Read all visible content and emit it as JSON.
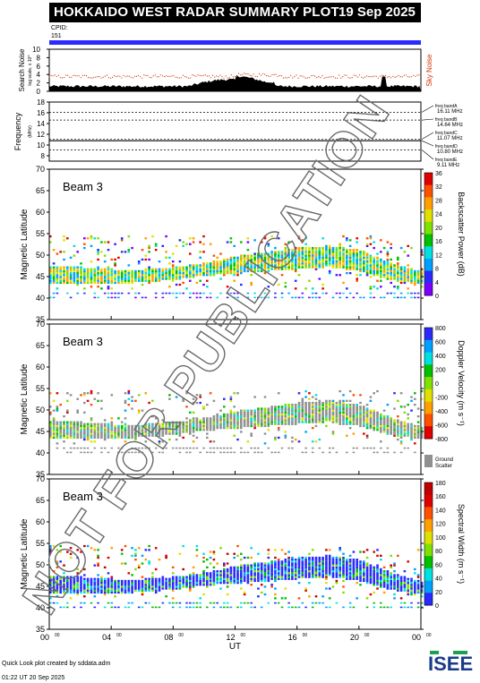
{
  "title": "HOKKAIDO WEST RADAR SUMMARY PLOT",
  "date": "19 Sep 2025",
  "cpid_label": "CPID:",
  "cpid_value": "151",
  "search_noise": {
    "ylabel": "Search Noise",
    "ylabel_sub": "log scale, x 10^",
    "right_label": "Sky Noise",
    "ticks": [
      "0",
      "2",
      "4",
      "6",
      "8",
      "10"
    ]
  },
  "frequency": {
    "ylabel": "Frequency",
    "unit": "(MHz)",
    "ticks": [
      "8",
      "10",
      "12",
      "14",
      "16",
      "18"
    ],
    "bands": [
      {
        "name": "freq bandA",
        "value": "16.11 MHz"
      },
      {
        "name": "freq bandB",
        "value": "14.64 MHz"
      },
      {
        "name": "freq bandC",
        "value": "11.07 MHz"
      },
      {
        "name": "freq bandD",
        "value": "10.80 MHz"
      },
      {
        "name": "freq bandE",
        "value": "9.11 MHz"
      }
    ]
  },
  "panels": [
    {
      "beam": "Beam  3",
      "ylabel": "Magnetic Latitude",
      "cbar_label": "Backscatter Power (dB)",
      "cbar_ticks": [
        "0",
        "4",
        "8",
        "12",
        "16",
        "20",
        "24",
        "28",
        "32",
        "36"
      ],
      "colors": [
        "#7a00ff",
        "#2a2aff",
        "#00a0ff",
        "#00e0e0",
        "#00c000",
        "#80e000",
        "#e0e000",
        "#ffa000",
        "#ff5000",
        "#e00000"
      ]
    },
    {
      "beam": "Beam  3",
      "ylabel": "Magnetic Latitude",
      "cbar_label": "Doppler Velocity (m s⁻¹)",
      "cbar_ticks": [
        "-800",
        "-600",
        "-400",
        "-200",
        "0",
        "200",
        "400",
        "600",
        "800"
      ],
      "ground_label": "Ground Scatter",
      "colors": [
        "#e00000",
        "#ff5000",
        "#ffa000",
        "#e0e000",
        "#80e000",
        "#00c000",
        "#00e0e0",
        "#00a0ff",
        "#2a2aff"
      ]
    },
    {
      "beam": "Beam  3",
      "ylabel": "Magnetic Latitude",
      "cbar_label": "Spectral Width (m s⁻¹)",
      "cbar_ticks": [
        "0",
        "20",
        "40",
        "60",
        "80",
        "100",
        "120",
        "140",
        "160",
        "180"
      ],
      "colors": [
        "#2a2aff",
        "#00a0ff",
        "#00e0e0",
        "#00c000",
        "#80e000",
        "#e0e000",
        "#ffa000",
        "#ff5000",
        "#e00000",
        "#c00000"
      ]
    }
  ],
  "lat_ticks": [
    "35",
    "40",
    "45",
    "50",
    "55",
    "60",
    "65",
    "70"
  ],
  "time_ticks": [
    "00",
    "04",
    "08",
    "12",
    "16",
    "20",
    "00"
  ],
  "time_sup": "00",
  "xlabel": "UT",
  "watermark": "NOT FOR PUBLICATION",
  "footer_line1": "Quick Look plot created by sddata.adm",
  "footer_line2": "01:22 UT 20 Sep 2025",
  "logo_text": "ISEE",
  "chart_data": {
    "type": "heatmap",
    "x_range_hours": [
      0,
      24
    ],
    "y_range_mlat": [
      35,
      70
    ],
    "scatter_band": {
      "hours": [
        0,
        2,
        4,
        6,
        8,
        10,
        12,
        14,
        16,
        18,
        20,
        22,
        24
      ],
      "lat_low": [
        43,
        43,
        43,
        43.5,
        44,
        45,
        45.5,
        46,
        46.5,
        47,
        46,
        44,
        43
      ],
      "lat_high": [
        47,
        47,
        46.5,
        46.5,
        47,
        48,
        49.5,
        50.5,
        51.5,
        52,
        51,
        48,
        46
      ]
    },
    "noise_level": 3.5,
    "ground_scatter_lines_mlat": [
      40,
      41
    ]
  }
}
